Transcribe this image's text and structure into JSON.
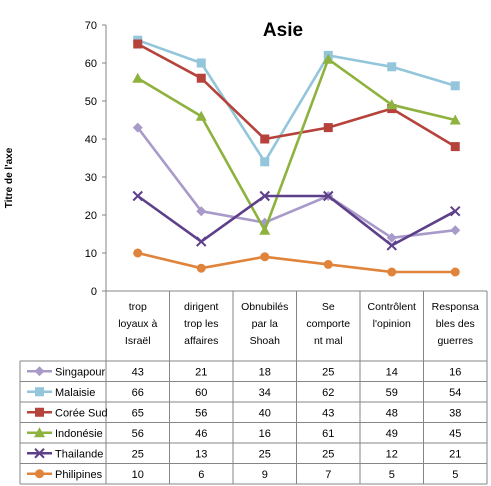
{
  "chart_data": {
    "type": "line",
    "title": "Asie",
    "ylabel": "Titre de l'axe",
    "ylim": [
      0,
      70
    ],
    "yticks": [
      0,
      10,
      20,
      30,
      40,
      50,
      60,
      70
    ],
    "grid": false,
    "categories": [
      [
        "trop",
        "loyaux à",
        "Israël"
      ],
      [
        "dirigent",
        "trop les",
        "affaires"
      ],
      [
        "Obnubilés",
        "par la",
        "Shoah"
      ],
      [
        "Se",
        "comporte",
        "nt mal"
      ],
      [
        "Contrôlent",
        "l'opinion"
      ],
      [
        "Responsa",
        "bles des",
        "guerres"
      ]
    ],
    "series": [
      {
        "name": "Singapour",
        "values": [
          43,
          21,
          18,
          25,
          14,
          16
        ],
        "color": "#a99bc9",
        "marker": "diamond"
      },
      {
        "name": "Malaisie",
        "values": [
          66,
          60,
          34,
          62,
          59,
          54
        ],
        "color": "#93c6db",
        "marker": "square"
      },
      {
        "name": "Corée Sud",
        "values": [
          65,
          56,
          40,
          43,
          48,
          38
        ],
        "color": "#b5423b",
        "marker": "square"
      },
      {
        "name": "Indonésie",
        "values": [
          56,
          46,
          16,
          61,
          49,
          45
        ],
        "color": "#8db23e",
        "marker": "triangle"
      },
      {
        "name": "Thailande",
        "values": [
          25,
          13,
          25,
          25,
          12,
          21
        ],
        "color": "#5e3f8a",
        "marker": "x"
      },
      {
        "name": "Philipines",
        "values": [
          10,
          6,
          9,
          7,
          5,
          5
        ],
        "color": "#e0843b",
        "marker": "circle"
      }
    ]
  }
}
